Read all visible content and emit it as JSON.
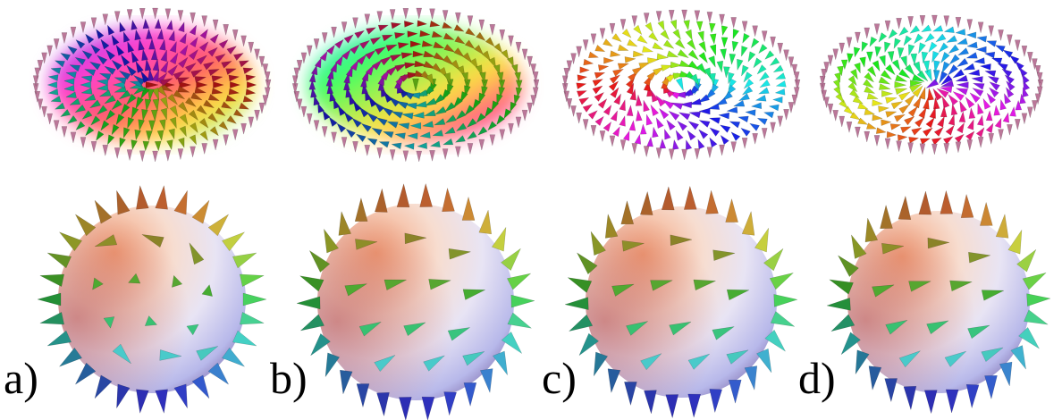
{
  "labels": [
    "a)",
    "b)",
    "c)",
    "d)"
  ]
}
